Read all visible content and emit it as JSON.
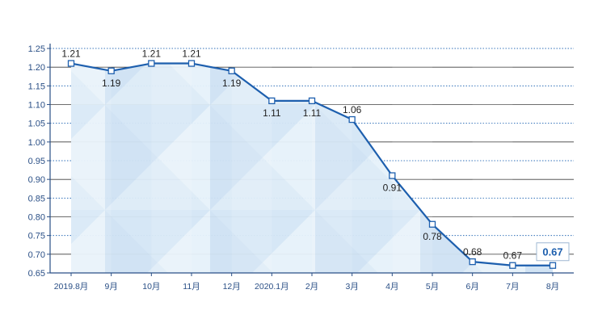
{
  "chart_data": {
    "type": "area",
    "title": "",
    "xlabel": "",
    "ylabel": "",
    "categories": [
      "2019.8月",
      "9月",
      "10月",
      "11月",
      "12月",
      "2020.1月",
      "2月",
      "3月",
      "4月",
      "5月",
      "6月",
      "7月",
      "8月"
    ],
    "series": [
      {
        "values": [
          1.21,
          1.19,
          1.21,
          1.21,
          1.19,
          1.11,
          1.11,
          1.06,
          0.91,
          0.78,
          0.68,
          0.67,
          0.67
        ],
        "value_labels": [
          "1.21",
          "1.19",
          "1.21",
          "1.21",
          "1.19",
          "1.11",
          "1.11",
          "1.06",
          "0.91",
          "0.78",
          "0.68",
          "0.67",
          "0.67"
        ]
      }
    ],
    "ylim": [
      0.65,
      1.25
    ],
    "yticks": [
      "0.65",
      "0.70",
      "0.75",
      "0.80",
      "0.85",
      "0.90",
      "0.95",
      "1.00",
      "1.05",
      "1.10",
      "1.15",
      "1.20",
      "1.25"
    ],
    "grid": "horizontal, solid and dotted alternating",
    "legend": "none",
    "colors": {
      "line": "#1d5fae",
      "axis": "#2a4f86",
      "fill": "#d5e8f6",
      "grid_solid": "#3c3c3c",
      "grid_dotted": "#2f6fb8"
    }
  }
}
